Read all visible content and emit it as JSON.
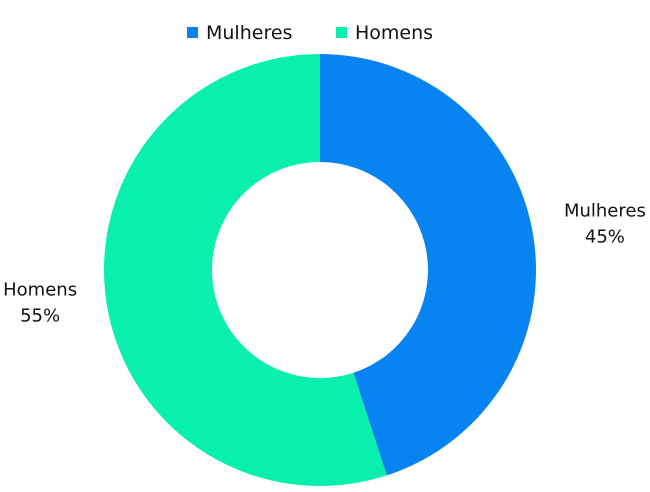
{
  "chart_data": {
    "type": "pie",
    "variant": "donut",
    "title": "",
    "legend_position": "top",
    "series": [
      {
        "name": "Mulheres",
        "value": 45,
        "label": "45%",
        "color": "#0883F2"
      },
      {
        "name": "Homens",
        "value": 55,
        "label": "55%",
        "color": "#09F0AE"
      }
    ]
  }
}
